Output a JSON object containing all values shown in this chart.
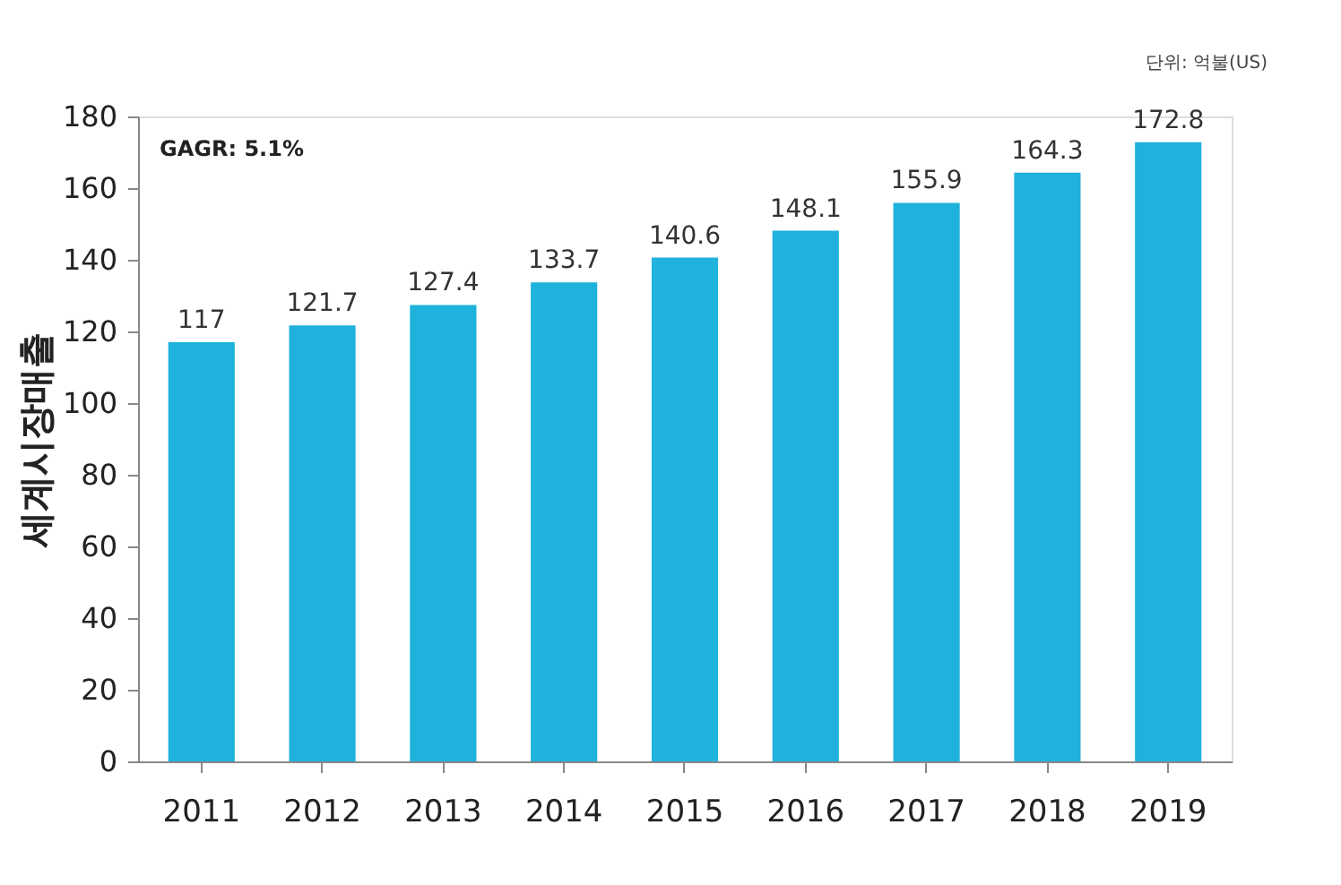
{
  "chart_data": {
    "type": "bar",
    "ylabel": "세계시장매출",
    "categories": [
      "2011",
      "2012",
      "2013",
      "2014",
      "2015",
      "2016",
      "2017",
      "2018",
      "2019"
    ],
    "values": [
      117,
      121.7,
      127.4,
      133.7,
      140.6,
      148.1,
      155.9,
      164.3,
      172.8
    ],
    "color": "#1fb2dc",
    "ylim": [
      0,
      180
    ],
    "yticks": [
      0,
      20,
      40,
      60,
      80,
      100,
      120,
      140,
      160,
      180
    ],
    "grid": false,
    "data_labels": true,
    "annotations": [
      "GAGR: 5.1%",
      "단위: 억불(US)"
    ]
  }
}
